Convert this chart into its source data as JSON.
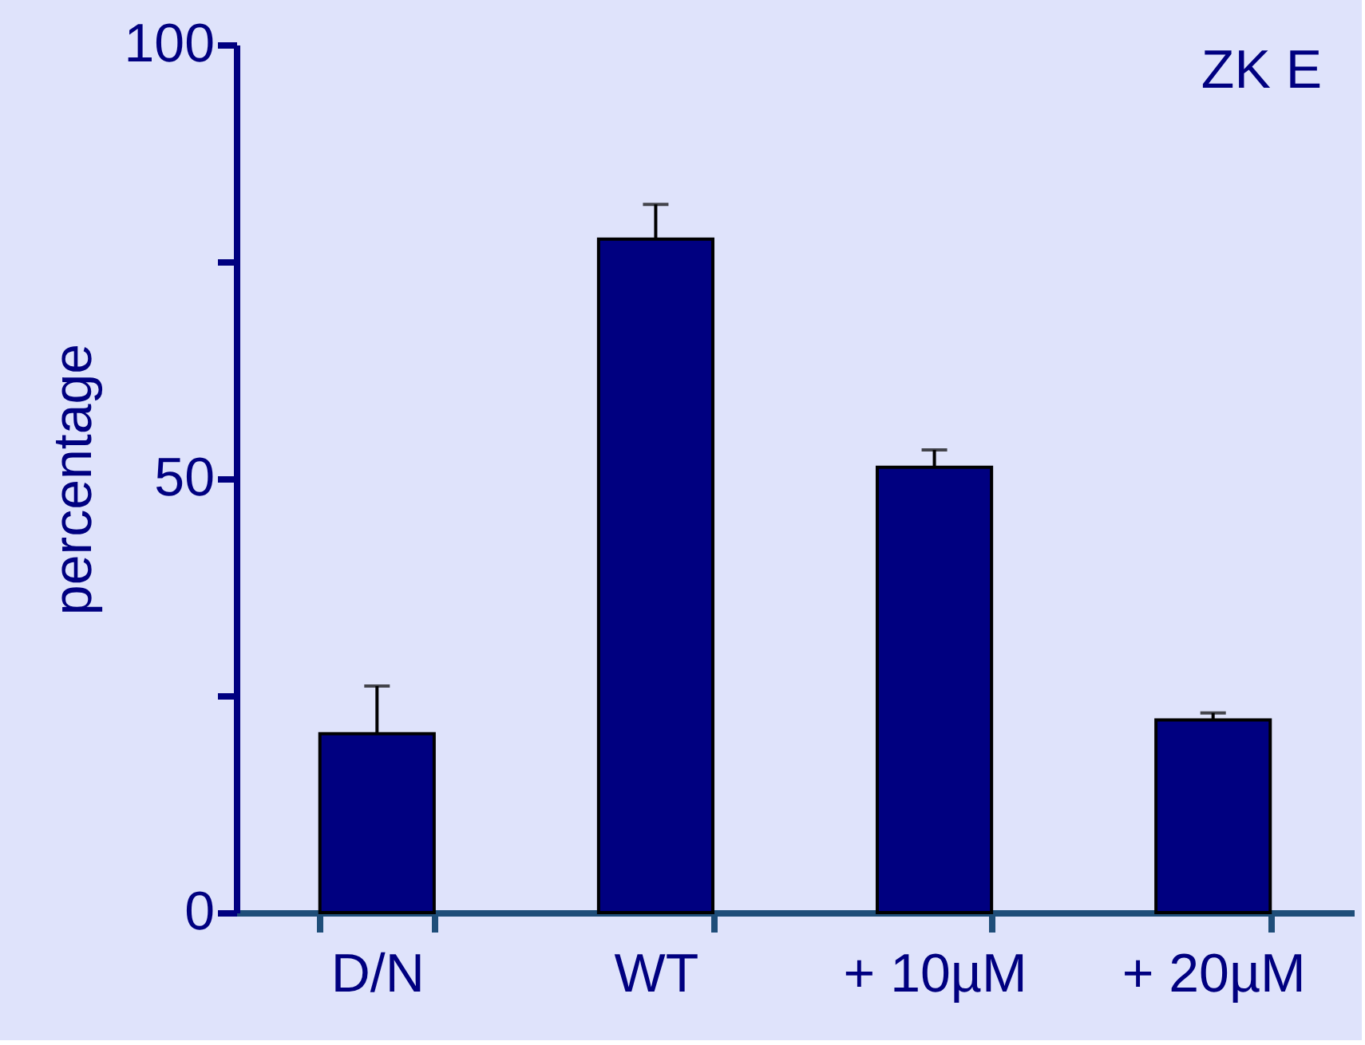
{
  "chart_data": {
    "type": "bar",
    "ylabel": "percentage",
    "categories": [
      "D/N",
      "WT",
      "+ 10µM",
      "+ 20µM"
    ],
    "values": [
      20.6,
      77.6,
      51.3,
      22.2
    ],
    "errors": [
      [
        20.6,
        26.1
      ],
      [
        77.6,
        81.6
      ],
      [
        51.3,
        53.3
      ],
      [
        22.2,
        23.0
      ]
    ],
    "color": "#000080",
    "ylim": [
      0,
      100
    ],
    "yticks": [
      0,
      {
        "value": 25,
        "label": null
      },
      50,
      {
        "value": 75,
        "label": null
      },
      100
    ],
    "annotations": [
      "ZK E"
    ],
    "grid": false
  }
}
